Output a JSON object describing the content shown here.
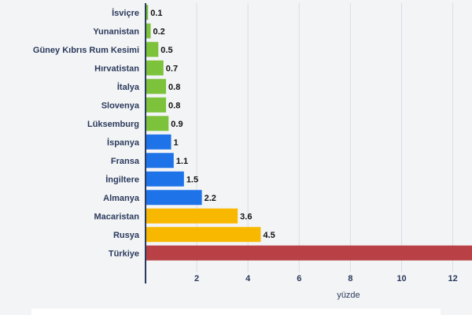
{
  "chart_data": {
    "type": "bar",
    "orientation": "horizontal",
    "categories": [
      "İsviçre",
      "Yunanistan",
      "Güney Kıbrıs Rum Kesimi",
      "Hırvatistan",
      "İtalya",
      "Slovenya",
      "Lüksemburg",
      "İspanya",
      "Fransa",
      "İngiltere",
      "Almanya",
      "Macaristan",
      "Rusya",
      "Türkiye"
    ],
    "values": [
      0.1,
      0.2,
      0.5,
      0.7,
      0.8,
      0.8,
      0.9,
      1,
      1.1,
      1.5,
      2.2,
      3.6,
      4.5,
      null
    ],
    "value_labels": [
      "0.1",
      "0.2",
      "0.5",
      "0.7",
      "0.8",
      "0.8",
      "0.9",
      "1",
      "1.1",
      "1.5",
      "2.2",
      "3.6",
      "4.5",
      ""
    ],
    "bar_colors": [
      "#7cc23a",
      "#7cc23a",
      "#7cc23a",
      "#7cc23a",
      "#7cc23a",
      "#7cc23a",
      "#7cc23a",
      "#1e73e8",
      "#1e73e8",
      "#1e73e8",
      "#1e73e8",
      "#f9b800",
      "#f9b800",
      "#b94146"
    ],
    "x_ticks": [
      "2",
      "4",
      "6",
      "8",
      "10",
      "12"
    ],
    "xlabel": "yüzde",
    "xlim": [
      0,
      12.75
    ],
    "grid": true,
    "notes": "Türkiye bar extends beyond the visible axis range"
  }
}
